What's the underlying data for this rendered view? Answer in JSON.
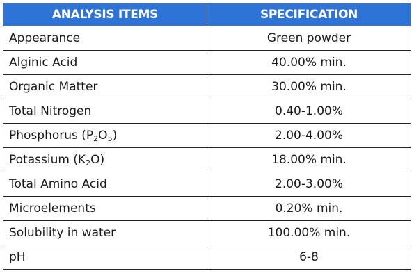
{
  "table": {
    "headers": {
      "item": "ANALYSIS ITEMS",
      "spec": "SPECIFICATION"
    },
    "rows": [
      {
        "item": "Appearance",
        "spec": "Green powder"
      },
      {
        "item": "Alginic Acid",
        "spec": "40.00% min."
      },
      {
        "item": "Organic Matter",
        "spec": "30.00% min."
      },
      {
        "item": "Total Nitrogen",
        "spec": "0.40-1.00%"
      },
      {
        "item_parts": {
          "a": "Phosphorus (P",
          "sub1": "2",
          "b": "O",
          "sub2": "5",
          "c": ")"
        },
        "spec": "2.00-4.00%"
      },
      {
        "item_parts": {
          "a": "Potassium (K",
          "sub1": "2",
          "b": "O)"
        },
        "spec": "18.00% min."
      },
      {
        "item": "Total Amino Acid",
        "spec": "2.00-3.00%"
      },
      {
        "item": "Microelements",
        "spec": "0.20% min."
      },
      {
        "item": "Solubility in water",
        "spec": "100.00% min."
      },
      {
        "item": "pH",
        "spec": "6-8"
      }
    ]
  },
  "colors": {
    "header_bg": "#2e74d6",
    "header_text": "#ffffff",
    "border": "#222222"
  }
}
